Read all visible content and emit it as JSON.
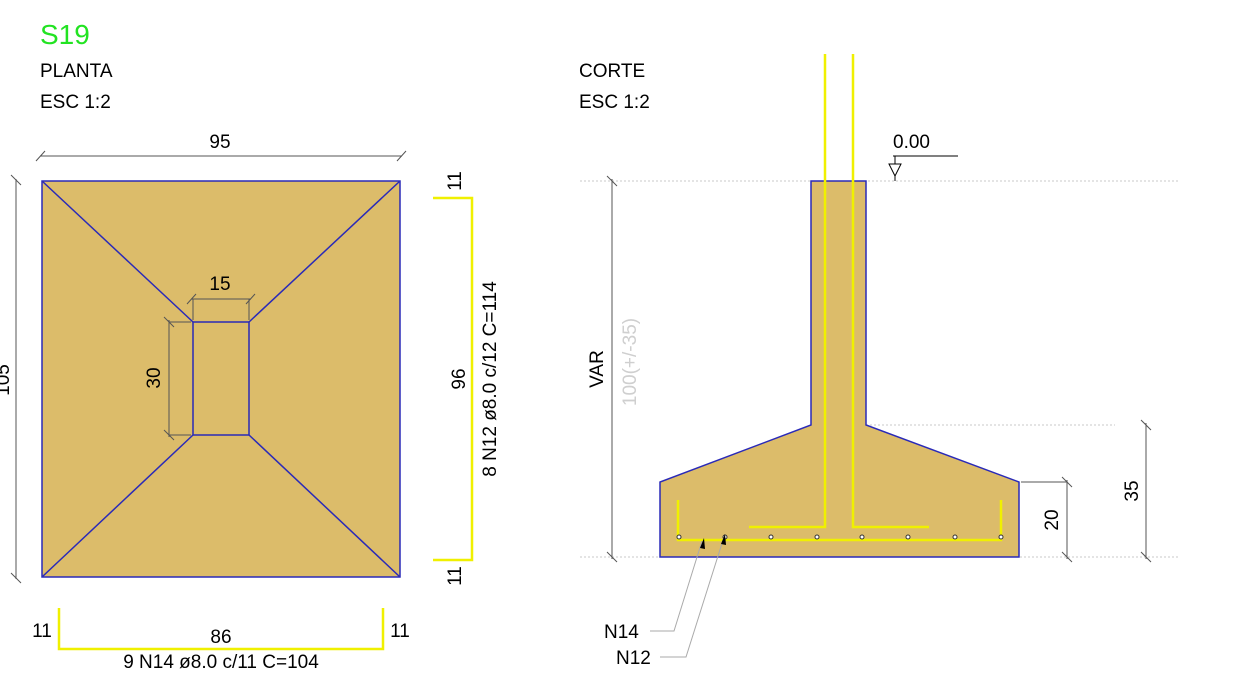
{
  "title": "S19",
  "plan": {
    "view_label": "PLANTA",
    "scale_label": "ESC 1:2",
    "width_dim": "95",
    "length_dim": "105",
    "column_width_dim": "15",
    "column_length_dim": "30",
    "rebar_y": {
      "hook_top": "11",
      "hook_bottom": "11",
      "straight": "96",
      "spec": "8 N12 ø8.0 c/12  C=114"
    },
    "rebar_x": {
      "hook_left": "11",
      "hook_right": "11",
      "straight": "86",
      "spec": "9 N14 ø8.0 c/11  C=104"
    }
  },
  "section": {
    "view_label": "CORTE",
    "scale_label": "ESC 1:2",
    "level": "0.00",
    "height_var": "VAR",
    "height_ref": "100(+/-35)",
    "footing_height": "35",
    "edge_height": "20",
    "callout_1": "N14",
    "callout_2": "N12"
  },
  "colors": {
    "title": "#22e322",
    "concrete": "#dcbc6a",
    "outline": "#2a2ab8",
    "rebar": "#f0f000",
    "dim_line": "#555555",
    "faint_text": "#cfcfcf"
  }
}
